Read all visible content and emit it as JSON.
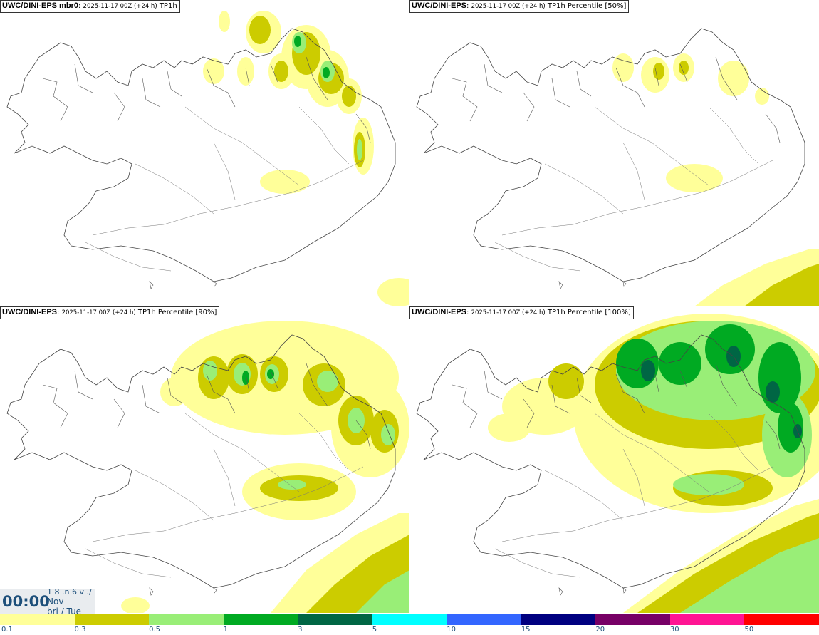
{
  "panels": [
    {
      "model": "UWC/DINI-EPS mbr0",
      "run": "2025-11-17 00Z (+24 h)",
      "field": "TP1h"
    },
    {
      "model": "UWC/DINI-EPS",
      "run": "2025-11-17 00Z (+24 h)",
      "field": "TP1h Percentile [50%]"
    },
    {
      "model": "UWC/DINI-EPS",
      "run": "2025-11-17 00Z (+24 h)",
      "field": "TP1h Percentile [90%]"
    },
    {
      "model": "UWC/DINI-EPS",
      "run": "2025-11-17 00Z (+24 h)",
      "field": "TP1h Percentile [100%]"
    }
  ],
  "time": {
    "clock": "00:00",
    "partial_text": "1 8 .n 6 v ./",
    "month": "Nov",
    "weekday": "bri / Tue"
  },
  "colorbar": {
    "colors": [
      "#ffff99",
      "#cccc00",
      "#99ee77",
      "#00aa22",
      "#006644",
      "#00ffff",
      "#3366ff",
      "#000080",
      "#770066",
      "#ff1493",
      "#ff0000"
    ],
    "labels": [
      "0.1",
      "0.3",
      "0.5",
      "1",
      "3",
      "5",
      "10",
      "15",
      "20",
      "30",
      "50"
    ]
  }
}
